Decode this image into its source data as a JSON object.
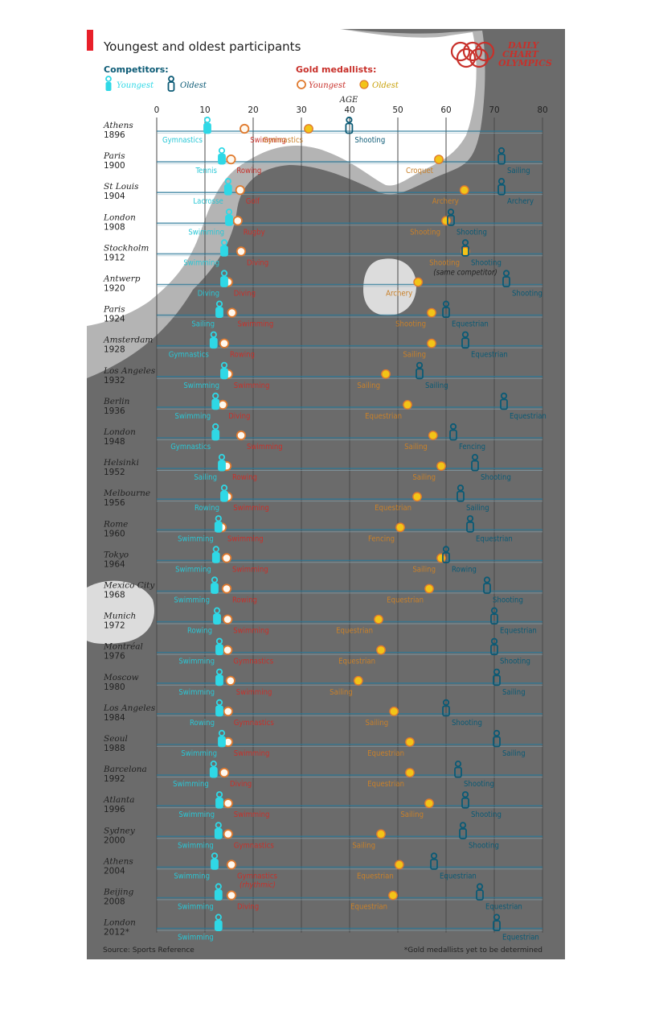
{
  "chart_data": {
    "type": "scatter",
    "title": "Youngest and oldest participants",
    "brand": [
      "DAILY",
      "CHART",
      "OLYMPICS"
    ],
    "xlabel": "AGE",
    "xlim": [
      0,
      80
    ],
    "xticks": [
      0,
      10,
      20,
      30,
      40,
      50,
      60,
      70,
      80
    ],
    "legend": {
      "competitors_title": "Competitors:",
      "competitors_youngest": "Youngest",
      "competitors_oldest": "Oldest",
      "medallists_title": "Gold medallists:",
      "medallists_youngest": "Youngest",
      "medallists_oldest": "Oldest"
    },
    "colors": {
      "comp_young": "#2fd8e6",
      "comp_old": "#0b5a75",
      "gold_young": "#e07a2e",
      "gold_old": "#f2c418",
      "red_label": "#c8302a",
      "mask": "#6b6b6b",
      "accent": "#e8202a"
    },
    "games": [
      {
        "city": "Athens",
        "year": "1896",
        "cy": 10.5,
        "cy_sport": "Gymnastics",
        "co": 39.9,
        "co_sport": "Shooting",
        "gy": 18.2,
        "gy_sport": "Swimming",
        "go": 31.5,
        "go_sport": "Gymnastics"
      },
      {
        "city": "Paris",
        "year": "1900",
        "cy": 13.5,
        "cy_sport": "Tennis",
        "co": 71.5,
        "co_sport": "Sailing",
        "gy": 15.4,
        "gy_sport": "Rowing",
        "go": 58.5,
        "go_sport": "Croquet"
      },
      {
        "city": "St Louis",
        "year": "1904",
        "cy": 14.8,
        "cy_sport": "Lacrosse",
        "co": 71.5,
        "co_sport": "Archery",
        "gy": 17.3,
        "gy_sport": "Golf",
        "go": 63.8,
        "go_sport": "Archery"
      },
      {
        "city": "London",
        "year": "1908",
        "cy": 15.0,
        "cy_sport": "Swimming",
        "co": 61.0,
        "co_sport": "Shooting",
        "gy": 16.8,
        "gy_sport": "Rugby",
        "go": 60.0,
        "go_sport": "Shooting"
      },
      {
        "city": "Stockholm",
        "year": "1912",
        "cy": 14.0,
        "cy_sport": "Swimming",
        "co": 64.0,
        "co_sport": "Shooting",
        "gy": 17.5,
        "gy_sport": "Diving",
        "go": 64.0,
        "go_sport": "Shooting",
        "note": "(same competitor)"
      },
      {
        "city": "Antwerp",
        "year": "1920",
        "cy": 14.0,
        "cy_sport": "Diving",
        "co": 72.5,
        "co_sport": "Shooting",
        "gy": 14.8,
        "gy_sport": "Diving",
        "go": 54.2,
        "go_sport": "Archery"
      },
      {
        "city": "Paris",
        "year": "1924",
        "cy": 13.0,
        "cy_sport": "Sailing",
        "co": 60.0,
        "co_sport": "Equestrian",
        "gy": 15.6,
        "gy_sport": "Swimming",
        "go": 57.0,
        "go_sport": "Shooting"
      },
      {
        "city": "Amsterdam",
        "year": "1928",
        "cy": 11.8,
        "cy_sport": "Gymnastics",
        "co": 64.0,
        "co_sport": "Equestrian",
        "gy": 14.0,
        "gy_sport": "Rowing",
        "go": 57.0,
        "go_sport": "Sailing"
      },
      {
        "city": "Los Angeles",
        "year": "1932",
        "cy": 14.0,
        "cy_sport": "Swimming",
        "co": 54.5,
        "co_sport": "Sailing",
        "gy": 14.8,
        "gy_sport": "Swimming",
        "go": 47.5,
        "go_sport": "Sailing"
      },
      {
        "city": "Berlin",
        "year": "1936",
        "cy": 12.2,
        "cy_sport": "Swimming",
        "co": 72.0,
        "co_sport": "Equestrian",
        "gy": 13.7,
        "gy_sport": "Diving",
        "go": 52.0,
        "go_sport": "Equestrian"
      },
      {
        "city": "London",
        "year": "1948",
        "cy": 12.2,
        "cy_sport": "Gymnastics",
        "co": 61.5,
        "co_sport": "Fencing",
        "gy": 17.5,
        "gy_sport": "Swimming",
        "go": 57.3,
        "go_sport": "Sailing"
      },
      {
        "city": "Helsinki",
        "year": "1952",
        "cy": 13.5,
        "cy_sport": "Sailing",
        "co": 66.0,
        "co_sport": "Shooting",
        "gy": 14.5,
        "gy_sport": "Rowing",
        "go": 59.0,
        "go_sport": "Sailing"
      },
      {
        "city": "Melbourne",
        "year": "1956",
        "cy": 14.0,
        "cy_sport": "Rowing",
        "co": 63.0,
        "co_sport": "Sailing",
        "gy": 14.7,
        "gy_sport": "Swimming",
        "go": 54.0,
        "go_sport": "Equestrian"
      },
      {
        "city": "Rome",
        "year": "1960",
        "cy": 12.8,
        "cy_sport": "Swimming",
        "co": 65.0,
        "co_sport": "Equestrian",
        "gy": 13.5,
        "gy_sport": "Swimming",
        "go": 50.5,
        "go_sport": "Fencing"
      },
      {
        "city": "Tokyo",
        "year": "1964",
        "cy": 12.3,
        "cy_sport": "Swimming",
        "co": 60.0,
        "co_sport": "Rowing",
        "gy": 14.5,
        "gy_sport": "Swimming",
        "go": 59.0,
        "go_sport": "Sailing"
      },
      {
        "city": "Mexico City",
        "year": "1968",
        "cy": 12.0,
        "cy_sport": "Swimming",
        "co": 68.5,
        "co_sport": "Shooting",
        "gy": 14.5,
        "gy_sport": "Rowing",
        "go": 56.5,
        "go_sport": "Equestrian"
      },
      {
        "city": "Munich",
        "year": "1972",
        "cy": 12.5,
        "cy_sport": "Rowing",
        "co": 70.0,
        "co_sport": "Equestrian",
        "gy": 14.7,
        "gy_sport": "Swimming",
        "go": 46.0,
        "go_sport": "Equestrian"
      },
      {
        "city": "Montréal",
        "year": "1976",
        "cy": 13.0,
        "cy_sport": "Swimming",
        "co": 70.0,
        "co_sport": "Shooting",
        "gy": 14.7,
        "gy_sport": "Gymnastics",
        "go": 46.5,
        "go_sport": "Equestrian"
      },
      {
        "city": "Moscow",
        "year": "1980",
        "cy": 13.0,
        "cy_sport": "Swimming",
        "co": 70.5,
        "co_sport": "Sailing",
        "gy": 15.3,
        "gy_sport": "Swimming",
        "go": 41.8,
        "go_sport": "Sailing"
      },
      {
        "city": "Los Angeles",
        "year": "1984",
        "cy": 13.0,
        "cy_sport": "Rowing",
        "co": 60.0,
        "co_sport": "Shooting",
        "gy": 14.8,
        "gy_sport": "Gymnastics",
        "go": 49.2,
        "go_sport": "Sailing"
      },
      {
        "city": "Seoul",
        "year": "1988",
        "cy": 13.5,
        "cy_sport": "Swimming",
        "co": 70.5,
        "co_sport": "Sailing",
        "gy": 14.8,
        "gy_sport": "Swimming",
        "go": 52.5,
        "go_sport": "Equestrian"
      },
      {
        "city": "Barcelona",
        "year": "1992",
        "cy": 11.8,
        "cy_sport": "Swimming",
        "co": 62.5,
        "co_sport": "Shooting",
        "gy": 14.0,
        "gy_sport": "Diving",
        "go": 52.5,
        "go_sport": "Equestrian"
      },
      {
        "city": "Atlanta",
        "year": "1996",
        "cy": 13.0,
        "cy_sport": "Swimming",
        "co": 64.0,
        "co_sport": "Shooting",
        "gy": 14.8,
        "gy_sport": "Swimming",
        "go": 56.5,
        "go_sport": "Sailing"
      },
      {
        "city": "Sydney",
        "year": "2000",
        "cy": 12.8,
        "cy_sport": "Swimming",
        "co": 63.5,
        "co_sport": "Shooting",
        "gy": 14.8,
        "gy_sport": "Gymnastics",
        "go": 46.5,
        "go_sport": "Sailing"
      },
      {
        "city": "Athens",
        "year": "2004",
        "cy": 12.0,
        "cy_sport": "Swimming",
        "co": 57.5,
        "co_sport": "Equestrian",
        "gy": 15.5,
        "gy_sport": "Gymnastics",
        "gy_note": "(rhythmic)",
        "go": 50.3,
        "go_sport": "Equestrian"
      },
      {
        "city": "Beijing",
        "year": "2008",
        "cy": 12.8,
        "cy_sport": "Swimming",
        "co": 67.0,
        "co_sport": "Equestrian",
        "gy": 15.5,
        "gy_sport": "Diving",
        "go": 49.0,
        "go_sport": "Equestrian"
      },
      {
        "city": "London",
        "year": "2012*",
        "cy": 12.8,
        "cy_sport": "Swimming",
        "co": 70.5,
        "co_sport": "Equestrian"
      }
    ],
    "source": "Source: Sports Reference",
    "footnote": "*Gold medallists yet to be determined"
  }
}
